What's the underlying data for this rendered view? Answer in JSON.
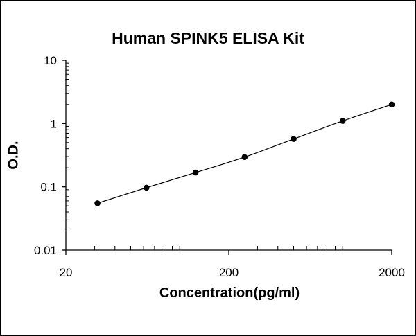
{
  "chart_data": {
    "type": "scatter",
    "title": "Human SPINK5  ELISA Kit",
    "xlabel": "Concentration(pg/ml)",
    "ylabel": "O.D.",
    "xscale": "log",
    "yscale": "log",
    "xlim": [
      20,
      2000
    ],
    "ylim": [
      0.01,
      10
    ],
    "x_tick_labels": [
      "20",
      "200",
      "2000"
    ],
    "y_tick_labels": [
      "0.01",
      "0.1",
      "1",
      "10"
    ],
    "grid": false,
    "legend": "none",
    "trendline": true,
    "series": [
      {
        "x": [
          31.25,
          62.5,
          125,
          250,
          500,
          1000,
          2000
        ],
        "y": [
          0.055,
          0.097,
          0.168,
          0.295,
          0.57,
          1.1,
          2.0
        ]
      }
    ],
    "colors": {
      "points": "#000000",
      "line": "#000000",
      "axis": "#000000"
    }
  }
}
